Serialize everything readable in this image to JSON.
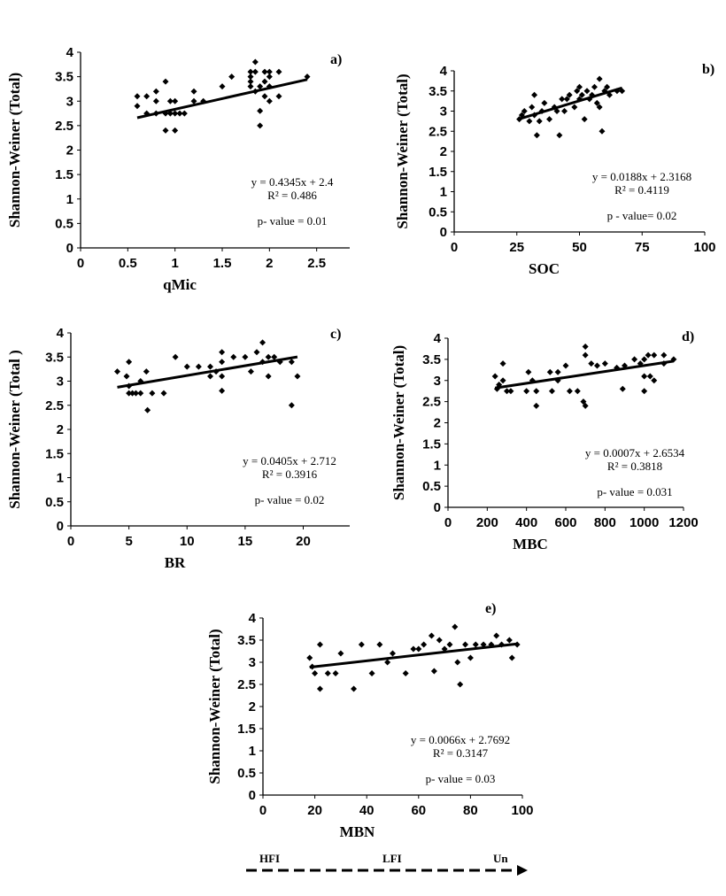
{
  "chart_data": [
    {
      "type": "scatter",
      "panel_label": "a)",
      "xlabel": "qMic",
      "ylabel": "Shannon-Weiner (Total)",
      "xlim": [
        0,
        2.85
      ],
      "ylim": [
        0,
        4
      ],
      "xticks": [
        "0",
        "0.5",
        "1",
        "1.5",
        "2",
        "2.5"
      ],
      "yticks": [
        "0",
        "0.5",
        "1",
        "1.5",
        "2",
        "2.5",
        "3",
        "3.5",
        "4"
      ],
      "equation": "y = 0.4345x + 2.4",
      "r2": "R² = 0.486",
      "pvalue": "p- value = 0.01",
      "slope": 0.4345,
      "intercept": 2.4,
      "points": [
        [
          0.6,
          3.1
        ],
        [
          0.6,
          2.9
        ],
        [
          0.7,
          3.1
        ],
        [
          0.7,
          2.75
        ],
        [
          0.8,
          3.2
        ],
        [
          0.8,
          3.0
        ],
        [
          0.8,
          2.75
        ],
        [
          0.9,
          3.4
        ],
        [
          0.9,
          2.75
        ],
        [
          0.9,
          2.4
        ],
        [
          0.95,
          3.0
        ],
        [
          0.95,
          2.75
        ],
        [
          1.0,
          3.0
        ],
        [
          1.0,
          2.75
        ],
        [
          1.0,
          2.4
        ],
        [
          1.05,
          2.75
        ],
        [
          1.1,
          2.75
        ],
        [
          1.2,
          3.2
        ],
        [
          1.2,
          3.0
        ],
        [
          1.3,
          3.0
        ],
        [
          1.5,
          3.3
        ],
        [
          1.6,
          3.5
        ],
        [
          1.8,
          3.6
        ],
        [
          1.8,
          3.5
        ],
        [
          1.8,
          3.4
        ],
        [
          1.8,
          3.3
        ],
        [
          1.85,
          3.8
        ],
        [
          1.85,
          3.6
        ],
        [
          1.85,
          3.2
        ],
        [
          1.9,
          3.3
        ],
        [
          1.9,
          2.8
        ],
        [
          1.9,
          2.5
        ],
        [
          1.95,
          3.6
        ],
        [
          1.95,
          3.4
        ],
        [
          1.95,
          3.1
        ],
        [
          2.0,
          3.5
        ],
        [
          2.0,
          3.3
        ],
        [
          2.0,
          3.0
        ],
        [
          2.0,
          3.6
        ],
        [
          2.1,
          3.6
        ],
        [
          2.1,
          3.1
        ],
        [
          2.4,
          3.5
        ]
      ]
    },
    {
      "type": "scatter",
      "panel_label": "b)",
      "xlabel": "SOC",
      "ylabel": "Shannon-Weiner (Total)",
      "xlim": [
        0,
        100
      ],
      "ylim": [
        0,
        4
      ],
      "xticks": [
        "0",
        "25",
        "50",
        "75",
        "100"
      ],
      "yticks": [
        "0",
        "0.5",
        "1",
        "1.5",
        "2",
        "2.5",
        "3",
        "3.5",
        "4"
      ],
      "equation": "y = 0.0188x + 2.3168",
      "r2": "R² = 0.4119",
      "pvalue": "p - value= 0.02",
      "slope": 0.0188,
      "intercept": 2.3168,
      "points": [
        [
          26,
          2.8
        ],
        [
          27,
          2.9
        ],
        [
          28,
          3.0
        ],
        [
          30,
          2.75
        ],
        [
          31,
          3.1
        ],
        [
          32,
          3.4
        ],
        [
          32,
          2.9
        ],
        [
          33,
          2.4
        ],
        [
          34,
          2.75
        ],
        [
          35,
          3.0
        ],
        [
          36,
          3.2
        ],
        [
          38,
          2.8
        ],
        [
          40,
          3.1
        ],
        [
          41,
          3.0
        ],
        [
          42,
          2.4
        ],
        [
          43,
          3.3
        ],
        [
          44,
          3.0
        ],
        [
          45,
          3.3
        ],
        [
          46,
          3.4
        ],
        [
          48,
          3.1
        ],
        [
          49,
          3.5
        ],
        [
          50,
          3.6
        ],
        [
          50,
          3.3
        ],
        [
          51,
          3.4
        ],
        [
          52,
          2.8
        ],
        [
          53,
          3.5
        ],
        [
          54,
          3.3
        ],
        [
          55,
          3.4
        ],
        [
          56,
          3.6
        ],
        [
          57,
          3.2
        ],
        [
          58,
          3.8
        ],
        [
          58,
          3.1
        ],
        [
          59,
          2.5
        ],
        [
          60,
          3.5
        ],
        [
          61,
          3.6
        ],
        [
          62,
          3.4
        ],
        [
          65,
          3.5
        ],
        [
          67,
          3.5
        ]
      ]
    },
    {
      "type": "scatter",
      "panel_label": "c)",
      "xlabel": "BR",
      "ylabel": "Shannon-Weiner (Total )",
      "xlim": [
        0,
        24
      ],
      "ylim": [
        0,
        4
      ],
      "xticks": [
        "0",
        "5",
        "10",
        "15",
        "20"
      ],
      "yticks": [
        "0",
        "0.5",
        "1",
        "1.5",
        "2",
        "2.5",
        "3",
        "3.5",
        "4"
      ],
      "equation": "y = 0.0405x + 2.712",
      "r2": "R² = 0.3916",
      "pvalue": "p- value = 0.02",
      "slope": 0.0405,
      "intercept": 2.712,
      "points": [
        [
          4,
          3.2
        ],
        [
          4.8,
          3.1
        ],
        [
          5,
          3.4
        ],
        [
          5,
          2.9
        ],
        [
          5,
          2.75
        ],
        [
          5.3,
          2.75
        ],
        [
          5.6,
          2.75
        ],
        [
          6,
          3.0
        ],
        [
          6,
          2.75
        ],
        [
          6.5,
          3.2
        ],
        [
          6.6,
          2.4
        ],
        [
          7,
          2.75
        ],
        [
          8,
          2.75
        ],
        [
          9,
          3.5
        ],
        [
          10,
          3.3
        ],
        [
          11,
          3.3
        ],
        [
          12,
          3.3
        ],
        [
          12,
          3.1
        ],
        [
          12.5,
          3.2
        ],
        [
          13,
          3.6
        ],
        [
          13,
          3.4
        ],
        [
          13,
          2.8
        ],
        [
          13,
          3.1
        ],
        [
          14,
          3.5
        ],
        [
          15,
          3.5
        ],
        [
          15.5,
          3.2
        ],
        [
          16,
          3.6
        ],
        [
          16.5,
          3.8
        ],
        [
          16.5,
          3.4
        ],
        [
          17,
          3.5
        ],
        [
          17,
          3.1
        ],
        [
          17.5,
          3.5
        ],
        [
          18,
          3.4
        ],
        [
          19,
          3.4
        ],
        [
          19,
          2.5
        ],
        [
          19.5,
          3.1
        ]
      ]
    },
    {
      "type": "scatter",
      "panel_label": "d)",
      "xlabel": "MBC",
      "ylabel": "Shannon-Weiner (Total)",
      "xlim": [
        0,
        1200
      ],
      "ylim": [
        0,
        4
      ],
      "xticks": [
        "0",
        "200",
        "400",
        "600",
        "800",
        "1000",
        "1200"
      ],
      "yticks": [
        "0",
        "0.5",
        "1",
        "1.5",
        "2",
        "2.5",
        "3",
        "3.5",
        "4"
      ],
      "equation": "y = 0.0007x + 2.6534",
      "r2": "R² = 0.3818",
      "pvalue": "p- value = 0.031",
      "slope": 0.0007,
      "intercept": 2.6534,
      "points": [
        [
          240,
          3.1
        ],
        [
          250,
          2.8
        ],
        [
          260,
          2.9
        ],
        [
          280,
          3.4
        ],
        [
          280,
          3.0
        ],
        [
          300,
          2.75
        ],
        [
          320,
          2.75
        ],
        [
          400,
          2.75
        ],
        [
          410,
          3.2
        ],
        [
          430,
          3.0
        ],
        [
          450,
          2.75
        ],
        [
          450,
          2.4
        ],
        [
          520,
          3.2
        ],
        [
          530,
          2.75
        ],
        [
          560,
          3.2
        ],
        [
          560,
          3.0
        ],
        [
          600,
          3.35
        ],
        [
          620,
          2.75
        ],
        [
          660,
          2.75
        ],
        [
          690,
          2.5
        ],
        [
          700,
          2.4
        ],
        [
          700,
          3.8
        ],
        [
          700,
          3.6
        ],
        [
          730,
          3.4
        ],
        [
          760,
          3.35
        ],
        [
          800,
          3.4
        ],
        [
          860,
          3.3
        ],
        [
          890,
          2.8
        ],
        [
          900,
          3.35
        ],
        [
          950,
          3.5
        ],
        [
          980,
          3.4
        ],
        [
          1000,
          3.5
        ],
        [
          1000,
          3.1
        ],
        [
          1000,
          2.75
        ],
        [
          1020,
          3.6
        ],
        [
          1030,
          3.1
        ],
        [
          1050,
          3.6
        ],
        [
          1050,
          3.0
        ],
        [
          1100,
          3.6
        ],
        [
          1100,
          3.4
        ],
        [
          1150,
          3.5
        ]
      ]
    },
    {
      "type": "scatter",
      "panel_label": "e)",
      "xlabel": "MBN",
      "ylabel": "Shannon-Weiner (Total)",
      "xlim": [
        0,
        100
      ],
      "ylim": [
        0,
        4
      ],
      "xticks": [
        "0",
        "20",
        "40",
        "60",
        "80",
        "100"
      ],
      "yticks": [
        "0",
        "0.5",
        "1",
        "1.5",
        "2",
        "2.5",
        "3",
        "3.5",
        "4"
      ],
      "equation": "y = 0.0066x + 2.7692",
      "r2": "R² = 0.3147",
      "pvalue": "p- value = 0.03",
      "slope": 0.0066,
      "intercept": 2.7692,
      "points": [
        [
          18,
          3.1
        ],
        [
          19,
          2.9
        ],
        [
          20,
          2.75
        ],
        [
          22,
          3.4
        ],
        [
          22,
          2.4
        ],
        [
          25,
          2.75
        ],
        [
          28,
          2.75
        ],
        [
          30,
          3.2
        ],
        [
          35,
          2.4
        ],
        [
          38,
          3.4
        ],
        [
          42,
          2.75
        ],
        [
          45,
          3.4
        ],
        [
          48,
          3.0
        ],
        [
          50,
          3.2
        ],
        [
          55,
          2.75
        ],
        [
          58,
          3.3
        ],
        [
          60,
          3.3
        ],
        [
          62,
          3.4
        ],
        [
          65,
          3.6
        ],
        [
          66,
          2.8
        ],
        [
          68,
          3.5
        ],
        [
          70,
          3.3
        ],
        [
          72,
          3.4
        ],
        [
          74,
          3.8
        ],
        [
          75,
          3.0
        ],
        [
          76,
          2.5
        ],
        [
          78,
          3.4
        ],
        [
          80,
          3.1
        ],
        [
          82,
          3.4
        ],
        [
          85,
          3.4
        ],
        [
          88,
          3.4
        ],
        [
          90,
          3.6
        ],
        [
          92,
          3.4
        ],
        [
          95,
          3.5
        ],
        [
          96,
          3.1
        ],
        [
          98,
          3.4
        ]
      ]
    }
  ],
  "footer": {
    "labels": [
      "HFI",
      "LFI",
      "Un"
    ]
  }
}
